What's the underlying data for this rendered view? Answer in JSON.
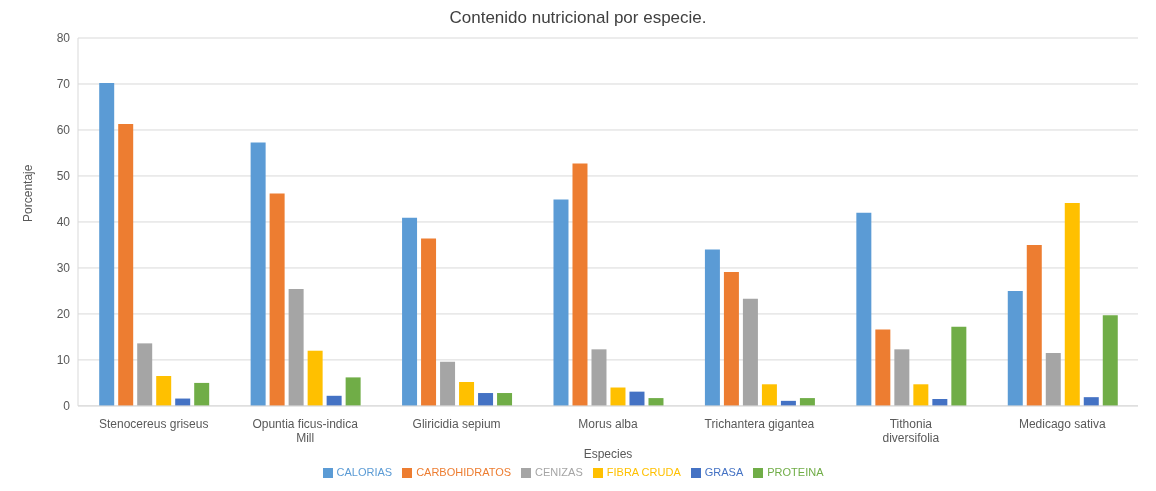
{
  "chart_data": {
    "type": "bar",
    "title": "Contenido nutricional por especie.",
    "xlabel": "Especies",
    "ylabel": "Porcentaje",
    "categories": [
      "Stenocereus griseus",
      "Opuntia ficus-indica Mill",
      "Gliricidia sepium",
      "Morus alba",
      "Trichantera gigantea",
      "Tithonia diversifolia",
      "Medicago sativa"
    ],
    "series": [
      {
        "name": "CALORIAS",
        "color": "#5b9bd5",
        "values": [
          70.2,
          57.3,
          40.9,
          44.9,
          34.0,
          42.0,
          25.0
        ]
      },
      {
        "name": "CARBOHIDRATOS",
        "color": "#ed7d31",
        "values": [
          61.3,
          46.2,
          36.4,
          52.7,
          29.1,
          16.6,
          35.0
        ]
      },
      {
        "name": "CENIZAS",
        "color": "#a5a5a5",
        "values": [
          13.6,
          25.4,
          9.6,
          12.3,
          23.3,
          12.3,
          11.5
        ]
      },
      {
        "name": "FIBRA CRUDA",
        "color": "#ffc000",
        "values": [
          6.5,
          12.0,
          5.2,
          4.0,
          4.7,
          4.7,
          44.1
        ]
      },
      {
        "name": "GRASA",
        "color": "#4472c4",
        "values": [
          1.6,
          2.2,
          2.8,
          3.1,
          1.1,
          1.5,
          1.9
        ]
      },
      {
        "name": "PROTEINA",
        "color": "#70ad47",
        "values": [
          5.0,
          6.2,
          2.8,
          1.7,
          1.7,
          17.2,
          19.7
        ]
      }
    ],
    "ylim": [
      0,
      80
    ],
    "yticks": [
      0,
      10,
      20,
      30,
      40,
      50,
      60,
      70,
      80
    ],
    "grid": "y",
    "legend": "bottom"
  }
}
